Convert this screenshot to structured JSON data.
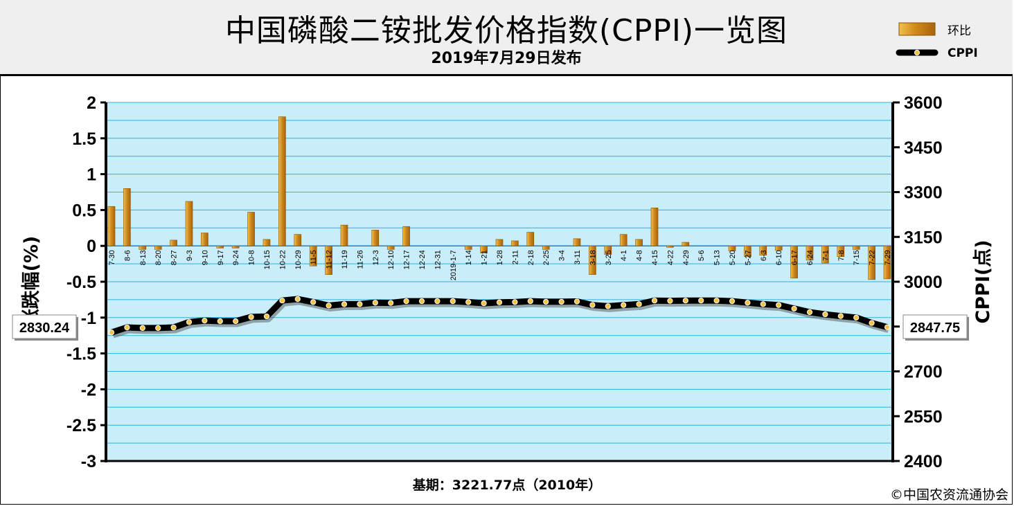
{
  "header": {
    "title": "中国磷酸二铵批发价格指数(CPPI)一览图",
    "subtitle": "2019年7月29日发布"
  },
  "legend": {
    "items": [
      {
        "label": "环比",
        "symbol": "bar"
      },
      {
        "label": "CPPI",
        "symbol": "line"
      }
    ]
  },
  "footer": {
    "base_period": "基期：3221.77点（2010年）",
    "copyright": "©中国农资流通协会"
  },
  "callouts": {
    "first_value": "2830.24",
    "last_value": "2847.75"
  },
  "colors": {
    "plot_background": "#c9eef9",
    "gridline": "#2bb0e0",
    "bar_fill": "#d2891c",
    "bar_highlight": "#f0c24a",
    "line_color": "#000000",
    "marker_fill": "#f5c244",
    "header_background": "#efefef"
  },
  "chart_data": {
    "type": "bar+line",
    "title": "中国磷酸二铵批发价格指数(CPPI)一览图",
    "subtitle": "2019年7月29日发布",
    "ylabel_left": "涨跌幅(%)",
    "ylabel_right": "CPPI(点)",
    "ylim_left": [
      -3,
      2
    ],
    "yticks_left": [
      "2",
      "1.5",
      "1",
      "0.5",
      "0",
      "-0.5",
      "-1",
      "-1.5",
      "-2",
      "-2.5",
      "-3"
    ],
    "ylim_right": [
      2400,
      3600
    ],
    "yticks_right": [
      "3600",
      "3450",
      "3300",
      "3150",
      "3000",
      "2850",
      "2700",
      "2550",
      "2400"
    ],
    "grid": "horizontal",
    "legend_position": "top-right",
    "categories": [
      "7-30",
      "8-6",
      "8-13",
      "8-20",
      "8-27",
      "9-3",
      "9-10",
      "9-17",
      "9-24",
      "10-8",
      "10-15",
      "10-22",
      "10-29",
      "11-5",
      "11-12",
      "11-19",
      "11-26",
      "12-3",
      "12-10",
      "12-17",
      "12-24",
      "12-31",
      "2019-1-7",
      "1-14",
      "1-21",
      "1-28",
      "2-11",
      "2-18",
      "2-25",
      "3-4",
      "3-11",
      "3-18",
      "3-25",
      "4-1",
      "4-8",
      "4-15",
      "4-22",
      "4-29",
      "5-6",
      "5-13",
      "5-20",
      "5-27",
      "6-3",
      "6-10",
      "6-17",
      "6-24",
      "7-1",
      "7-8",
      "7-15",
      "7-22",
      "7-29"
    ],
    "series": [
      {
        "name": "环比",
        "kind": "bar",
        "axis": "left",
        "values": [
          0.55,
          0.8,
          -0.05,
          -0.05,
          0.08,
          0.62,
          0.18,
          -0.03,
          -0.03,
          0.47,
          0.09,
          1.8,
          0.16,
          -0.28,
          -0.4,
          0.29,
          0.0,
          0.22,
          -0.05,
          0.27,
          0.0,
          0.0,
          0.0,
          -0.05,
          -0.1,
          0.09,
          0.07,
          0.19,
          -0.05,
          0.0,
          0.1,
          -0.4,
          -0.12,
          0.16,
          0.09,
          0.53,
          -0.02,
          0.05,
          0.0,
          0.0,
          -0.07,
          -0.15,
          -0.13,
          -0.06,
          -0.45,
          -0.2,
          -0.24,
          -0.15,
          -0.05,
          -0.47,
          -0.46
        ]
      },
      {
        "name": "CPPI",
        "kind": "line",
        "axis": "right",
        "values": [
          2830.24,
          2847,
          2845,
          2845,
          2847,
          2865,
          2870,
          2868,
          2868,
          2882,
          2884,
          2937,
          2942,
          2932,
          2920,
          2925,
          2925,
          2930,
          2929,
          2935,
          2935,
          2935,
          2935,
          2932,
          2928,
          2931,
          2932,
          2935,
          2933,
          2933,
          2934,
          2922,
          2918,
          2922,
          2925,
          2937,
          2936,
          2937,
          2937,
          2937,
          2935,
          2930,
          2925,
          2922,
          2910,
          2898,
          2891,
          2885,
          2880,
          2862,
          2847.75
        ]
      }
    ]
  }
}
